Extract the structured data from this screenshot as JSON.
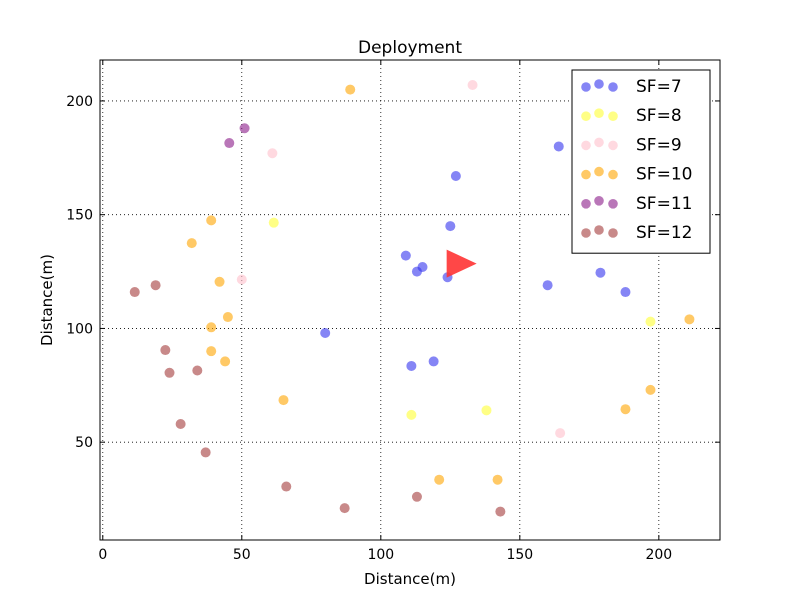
{
  "chart_data": {
    "type": "scatter",
    "title": "Deployment",
    "xlabel": "Distance(m)",
    "ylabel": "Distance(m)",
    "xlim": [
      -1,
      222
    ],
    "ylim": [
      7,
      218
    ],
    "xticks": [
      0,
      50,
      100,
      150,
      200
    ],
    "yticks": [
      50,
      100,
      150,
      200
    ],
    "xtick_labels": [
      "0",
      "50",
      "100",
      "150",
      "200"
    ],
    "ytick_labels": [
      "50",
      "100",
      "150",
      "200"
    ],
    "grid": true,
    "legend_position": "top-right",
    "gateway": {
      "x": 128,
      "y": 128.5,
      "color": "#ff3333",
      "shape": "triangle-right"
    },
    "series": [
      {
        "name": "SF=7",
        "color": "#3333ee",
        "points": [
          [
            164,
            180
          ],
          [
            127,
            167
          ],
          [
            125,
            145
          ],
          [
            109,
            132
          ],
          [
            115,
            127
          ],
          [
            113,
            125
          ],
          [
            124,
            122.5
          ],
          [
            179,
            124.5
          ],
          [
            160,
            119
          ],
          [
            188,
            116
          ],
          [
            80,
            98
          ],
          [
            119,
            85.5
          ],
          [
            111,
            83.5
          ]
        ]
      },
      {
        "name": "SF=8",
        "color": "#ffff33",
        "points": [
          [
            61.5,
            146.5
          ],
          [
            197,
            103
          ],
          [
            138,
            64
          ],
          [
            111,
            62
          ]
        ]
      },
      {
        "name": "SF=9",
        "color": "#ffc0cb",
        "points": [
          [
            133,
            207
          ],
          [
            61,
            177
          ],
          [
            50,
            121.5
          ],
          [
            164.5,
            54
          ]
        ]
      },
      {
        "name": "SF=10",
        "color": "#ffa500",
        "points": [
          [
            89,
            205
          ],
          [
            39,
            147.5
          ],
          [
            32,
            137.5
          ],
          [
            42,
            120.5
          ],
          [
            45,
            105
          ],
          [
            39,
            100.5
          ],
          [
            39,
            90
          ],
          [
            44,
            85.5
          ],
          [
            211,
            104
          ],
          [
            197,
            73
          ],
          [
            188,
            64.5
          ],
          [
            65,
            68.5
          ],
          [
            121,
            33.5
          ],
          [
            142,
            33.5
          ]
        ]
      },
      {
        "name": "SF=11",
        "color": "#8b1a89",
        "points": [
          [
            51,
            188
          ],
          [
            45.5,
            181.5
          ]
        ]
      },
      {
        "name": "SF=12",
        "color": "#a33a3a",
        "points": [
          [
            11.5,
            116
          ],
          [
            19,
            119
          ],
          [
            22.5,
            90.5
          ],
          [
            24,
            80.5
          ],
          [
            34,
            81.5
          ],
          [
            28,
            58
          ],
          [
            37,
            45.5
          ],
          [
            66,
            30.5
          ],
          [
            87,
            21
          ],
          [
            113,
            26
          ],
          [
            143,
            19.5
          ]
        ]
      }
    ]
  }
}
